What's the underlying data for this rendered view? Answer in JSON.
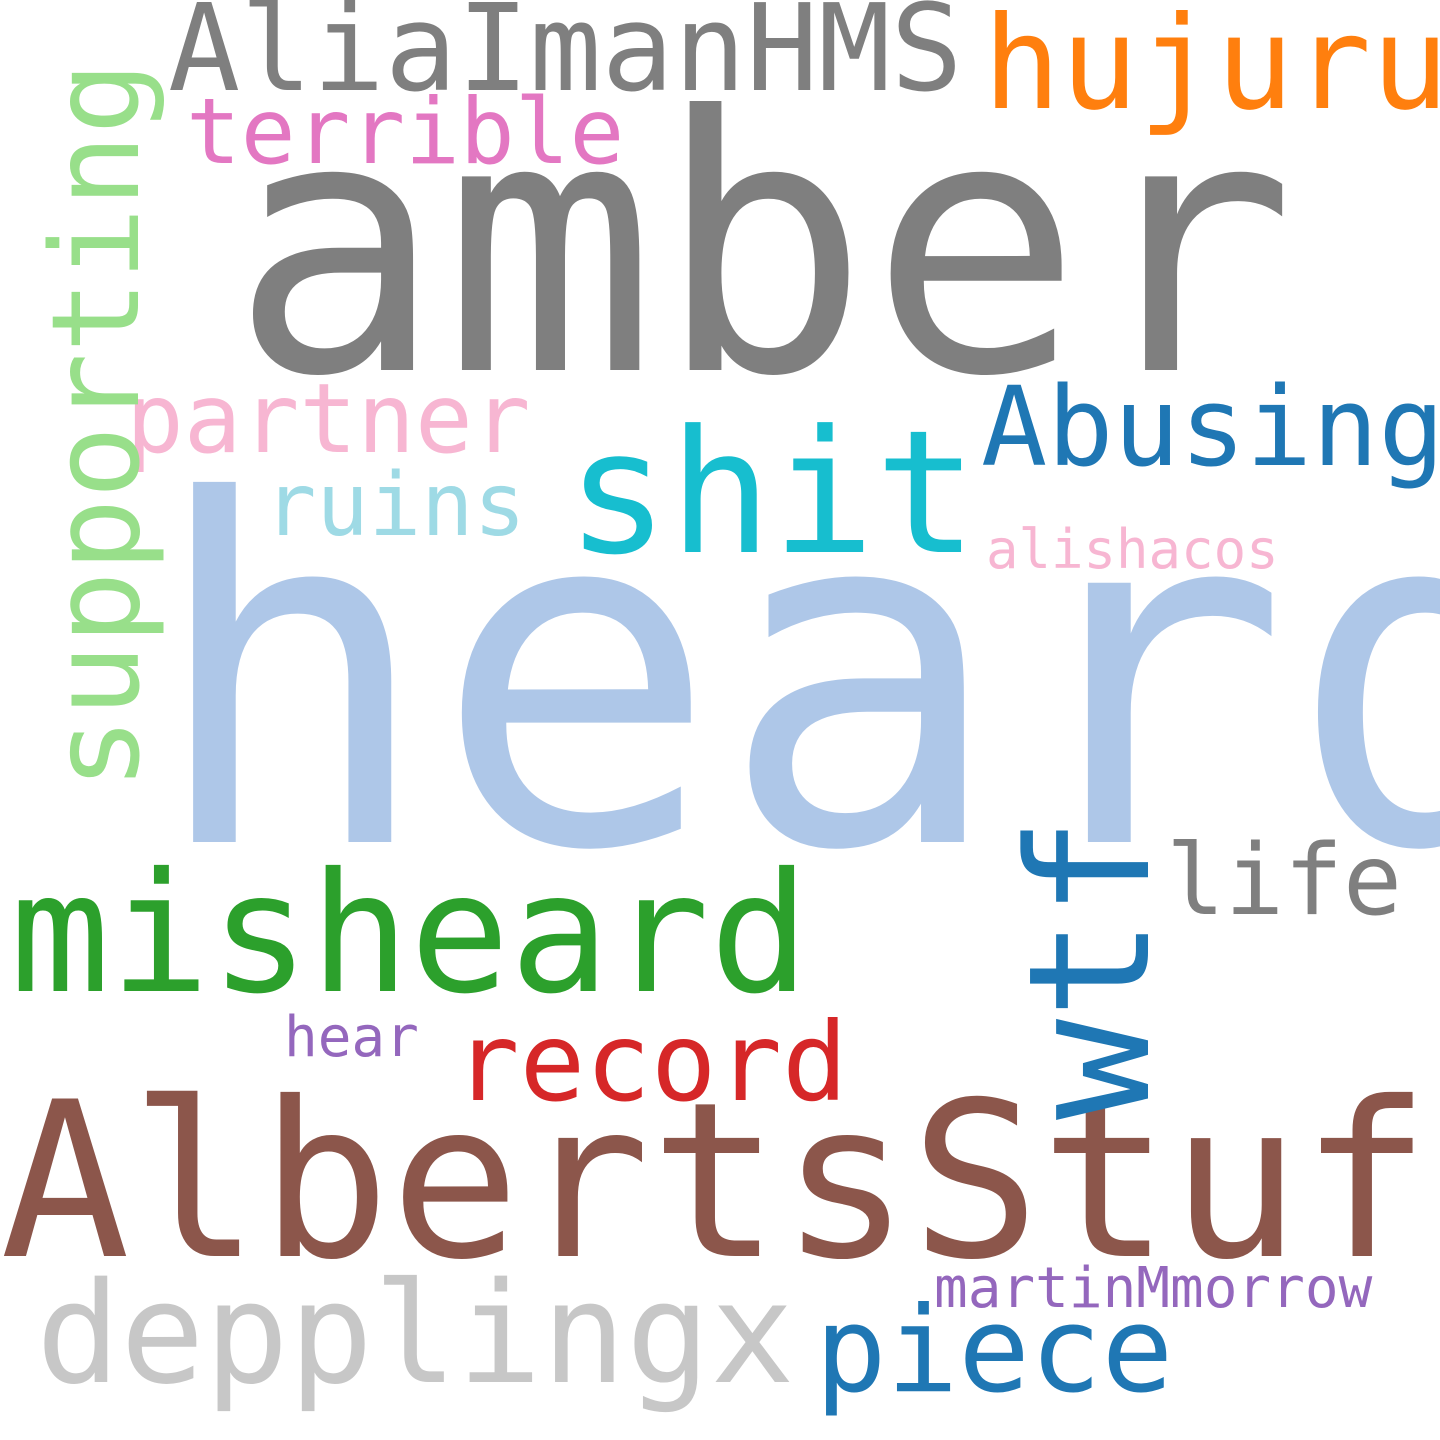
{
  "words": {
    "heard": {
      "text": "heard",
      "color": "#aec7e8"
    },
    "amber": {
      "text": "amber",
      "color": "#7f7f7f"
    },
    "albertsstuff": {
      "text": "AlbertsStuff",
      "color": "#8c564b"
    },
    "misheard": {
      "text": "misheard",
      "color": "#2ca02c"
    },
    "shit": {
      "text": "shit",
      "color": "#17becf"
    },
    "depplingx": {
      "text": "depplingx",
      "color": "#c7c7c7"
    },
    "aliaimanhms": {
      "text": "AliaImanHMS",
      "color": "#7f7f7f"
    },
    "hujuru": {
      "text": "hujuru",
      "color": "#ff7f0e"
    },
    "terrible": {
      "text": "terrible",
      "color": "#e377c2"
    },
    "partner": {
      "text": "partner",
      "color": "#f7b6d2"
    },
    "abusing": {
      "text": "Abusing",
      "color": "#1f77b4"
    },
    "ruins": {
      "text": "ruins",
      "color": "#9edae5"
    },
    "alishacos": {
      "text": "alishacos",
      "color": "#f7b6d2"
    },
    "life": {
      "text": "life",
      "color": "#7f7f7f"
    },
    "hear": {
      "text": "hear",
      "color": "#9467bd"
    },
    "record": {
      "text": "record",
      "color": "#d62728"
    },
    "piece": {
      "text": "piece",
      "color": "#1f77b4"
    },
    "martinmmorrow": {
      "text": "martinMmorrow",
      "color": "#9467bd"
    },
    "supporting": {
      "text": "supporting",
      "color": "#98df8a",
      "orientation": "vertical"
    },
    "wtf": {
      "text": "wtf",
      "color": "#1f77b4",
      "orientation": "vertical"
    }
  }
}
